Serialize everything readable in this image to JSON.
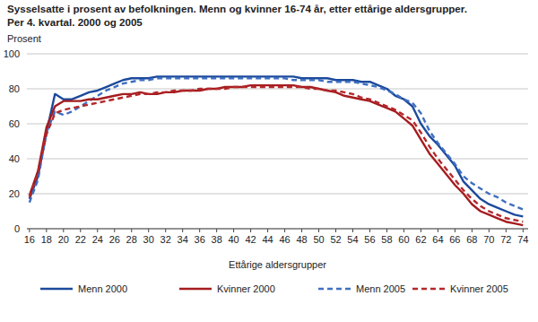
{
  "chart_data": {
    "type": "line",
    "title": "Sysselsatte i prosent av befolkningen. Menn og kvinner 16-74 år, etter ettårige aldersgrupper.",
    "subtitle": "Per 4. kvartal. 2000 og 2005",
    "y_label": "Prosent",
    "x_label": "Ettårige aldersgrupper",
    "x": [
      16,
      17,
      18,
      19,
      20,
      21,
      22,
      23,
      24,
      25,
      26,
      27,
      28,
      29,
      30,
      31,
      32,
      33,
      34,
      35,
      36,
      37,
      38,
      39,
      40,
      41,
      42,
      43,
      44,
      45,
      46,
      47,
      48,
      49,
      50,
      51,
      52,
      53,
      54,
      55,
      56,
      57,
      58,
      59,
      60,
      61,
      62,
      63,
      64,
      65,
      66,
      67,
      68,
      69,
      70,
      71,
      72,
      73,
      74
    ],
    "xlim": [
      15.7,
      74.6
    ],
    "xticks": [
      16,
      18,
      20,
      22,
      24,
      26,
      28,
      30,
      32,
      34,
      36,
      38,
      40,
      42,
      44,
      46,
      48,
      50,
      52,
      54,
      56,
      58,
      60,
      62,
      64,
      66,
      68,
      70,
      72,
      74
    ],
    "ylim": [
      0,
      100
    ],
    "yticks": [
      0,
      20,
      40,
      60,
      80,
      100
    ],
    "grid": true,
    "legend": "bottom",
    "series": [
      {
        "name": "Menn 2000",
        "color": "#1c4a9c",
        "line_style": "solid",
        "values": [
          17,
          30,
          55,
          77,
          74,
          74,
          76,
          78,
          79,
          81,
          83,
          85,
          86,
          86,
          86,
          87,
          87,
          87,
          87,
          87,
          87,
          87,
          87,
          87,
          87,
          87,
          87,
          87,
          87,
          87,
          87,
          87,
          86,
          86,
          86,
          86,
          85,
          85,
          85,
          84,
          84,
          82,
          80,
          76,
          74,
          70,
          60,
          53,
          48,
          42,
          36,
          27,
          22,
          17,
          14,
          12,
          10,
          8,
          7
        ]
      },
      {
        "name": "Kvinner 2000",
        "color": "#a51c1f",
        "line_style": "solid",
        "values": [
          19,
          33,
          58,
          70,
          73,
          73,
          73,
          74,
          74,
          75,
          76,
          77,
          77,
          78,
          77,
          77,
          78,
          78,
          79,
          79,
          79,
          80,
          80,
          81,
          81,
          81,
          82,
          82,
          82,
          82,
          82,
          82,
          81,
          81,
          80,
          79,
          78,
          76,
          75,
          74,
          73,
          71,
          69,
          67,
          63,
          59,
          51,
          43,
          37,
          31,
          25,
          20,
          14,
          10,
          8,
          6,
          4,
          3,
          2
        ]
      },
      {
        "name": "Menn 2005",
        "color": "#3f6fc2",
        "line_style": "dashed",
        "values": [
          15,
          28,
          55,
          67,
          65,
          67,
          70,
          73,
          76,
          79,
          81,
          83,
          84,
          85,
          85,
          86,
          86,
          86,
          86,
          86,
          86,
          86,
          86,
          86,
          86,
          86,
          86,
          86,
          86,
          86,
          86,
          85,
          85,
          85,
          85,
          84,
          84,
          84,
          84,
          83,
          82,
          81,
          79,
          77,
          74,
          72,
          66,
          56,
          49,
          43,
          37,
          30,
          26,
          23,
          20,
          18,
          15,
          13,
          11
        ]
      },
      {
        "name": "Kvinner 2005",
        "color": "#b3282b",
        "line_style": "dashed",
        "values": [
          18,
          32,
          54,
          66,
          68,
          69,
          70,
          71,
          72,
          73,
          74,
          75,
          76,
          77,
          77,
          78,
          78,
          79,
          79,
          79,
          80,
          80,
          80,
          80,
          81,
          81,
          81,
          81,
          81,
          81,
          81,
          81,
          81,
          80,
          80,
          79,
          79,
          78,
          77,
          75,
          74,
          72,
          70,
          68,
          65,
          62,
          55,
          47,
          40,
          34,
          28,
          22,
          17,
          13,
          10,
          8,
          6,
          5,
          4
        ]
      }
    ]
  }
}
